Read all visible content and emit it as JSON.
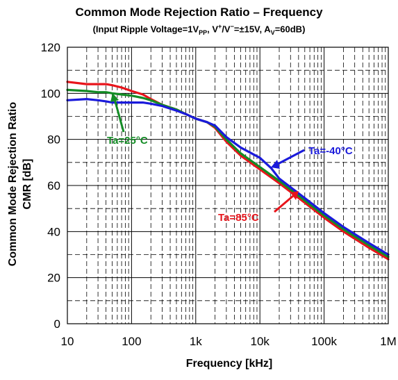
{
  "chart_data": {
    "type": "line",
    "title": "Common Mode Rejection Ratio – Frequency",
    "subtitle": "(Input Ripple Voltage=1V_PP, V+/V−=±15V, A_V=60dB)",
    "subtitle_parts": {
      "a": "(Input Ripple Voltage=1V",
      "a_sub": "PP",
      "b": ", V",
      "b_sup1": "+",
      "c": "/V",
      "c_sup2": "−",
      "d": "=±15V, A",
      "d_sub": "V",
      "e": "=60dB)"
    },
    "xlabel": "Frequency [kHz]",
    "ylabel_line1": "Common Mode Rejection Ratio",
    "ylabel_line2": "CMR [dB]",
    "x_scale": "log",
    "xlim": [
      10,
      1000000
    ],
    "ylim": [
      0,
      120
    ],
    "x_ticks": [
      10,
      100,
      1000,
      10000,
      100000,
      1000000
    ],
    "x_tick_labels": [
      "10",
      "100",
      "1k",
      "10k",
      "100k",
      "1M"
    ],
    "y_ticks": [
      0,
      20,
      40,
      60,
      80,
      100,
      120
    ],
    "y_tick_labels": [
      "0",
      "20",
      "40",
      "60",
      "80",
      "100",
      "120"
    ],
    "grid": true,
    "series": [
      {
        "name": "Ta=85°C",
        "color": "#e8141b",
        "x": [
          10,
          20,
          30,
          40,
          50,
          70,
          100,
          150,
          200,
          300,
          500,
          700,
          1000,
          1500,
          2000,
          3000,
          5000,
          10000,
          20000,
          50000,
          100000,
          200000,
          500000,
          1000000
        ],
        "y": [
          105,
          104,
          104,
          104,
          103.5,
          102.5,
          101,
          99.5,
          97.5,
          95,
          93,
          91,
          89,
          87.5,
          85,
          79,
          73,
          67,
          61,
          52.5,
          46,
          40,
          33,
          28
        ]
      },
      {
        "name": "Ta=25°C",
        "color": "#138c25",
        "x": [
          10,
          20,
          30,
          40,
          50,
          70,
          100,
          150,
          200,
          300,
          500,
          700,
          1000,
          1500,
          2000,
          3000,
          5000,
          10000,
          20000,
          50000,
          100000,
          200000,
          500000,
          1000000
        ],
        "y": [
          101.5,
          101,
          100.5,
          100.5,
          100,
          99.5,
          99,
          98,
          97,
          95,
          93,
          91,
          89,
          87.5,
          85.5,
          80,
          74,
          68,
          62,
          53.5,
          47,
          41,
          34,
          29
        ]
      },
      {
        "name": "Ta=-40°C",
        "color": "#1a1adb",
        "x": [
          10,
          20,
          30,
          40,
          50,
          70,
          100,
          150,
          200,
          300,
          500,
          700,
          1000,
          1500,
          2000,
          3000,
          5000,
          10000,
          15000,
          20000,
          50000,
          100000,
          200000,
          500000,
          1000000
        ],
        "y": [
          97,
          97.5,
          97,
          96.5,
          96,
          96,
          96,
          96,
          95.5,
          94.5,
          92.5,
          91,
          89,
          87.5,
          86,
          81,
          76.5,
          72,
          67.5,
          63,
          54.5,
          48,
          42,
          35,
          30
        ]
      }
    ],
    "annotations": [
      {
        "text": "Ta=25°C",
        "color": "#138c25"
      },
      {
        "text": "Ta=-40°C",
        "color": "#1a1adb"
      },
      {
        "text": "Ta=85°C",
        "color": "#e8141b"
      }
    ]
  }
}
